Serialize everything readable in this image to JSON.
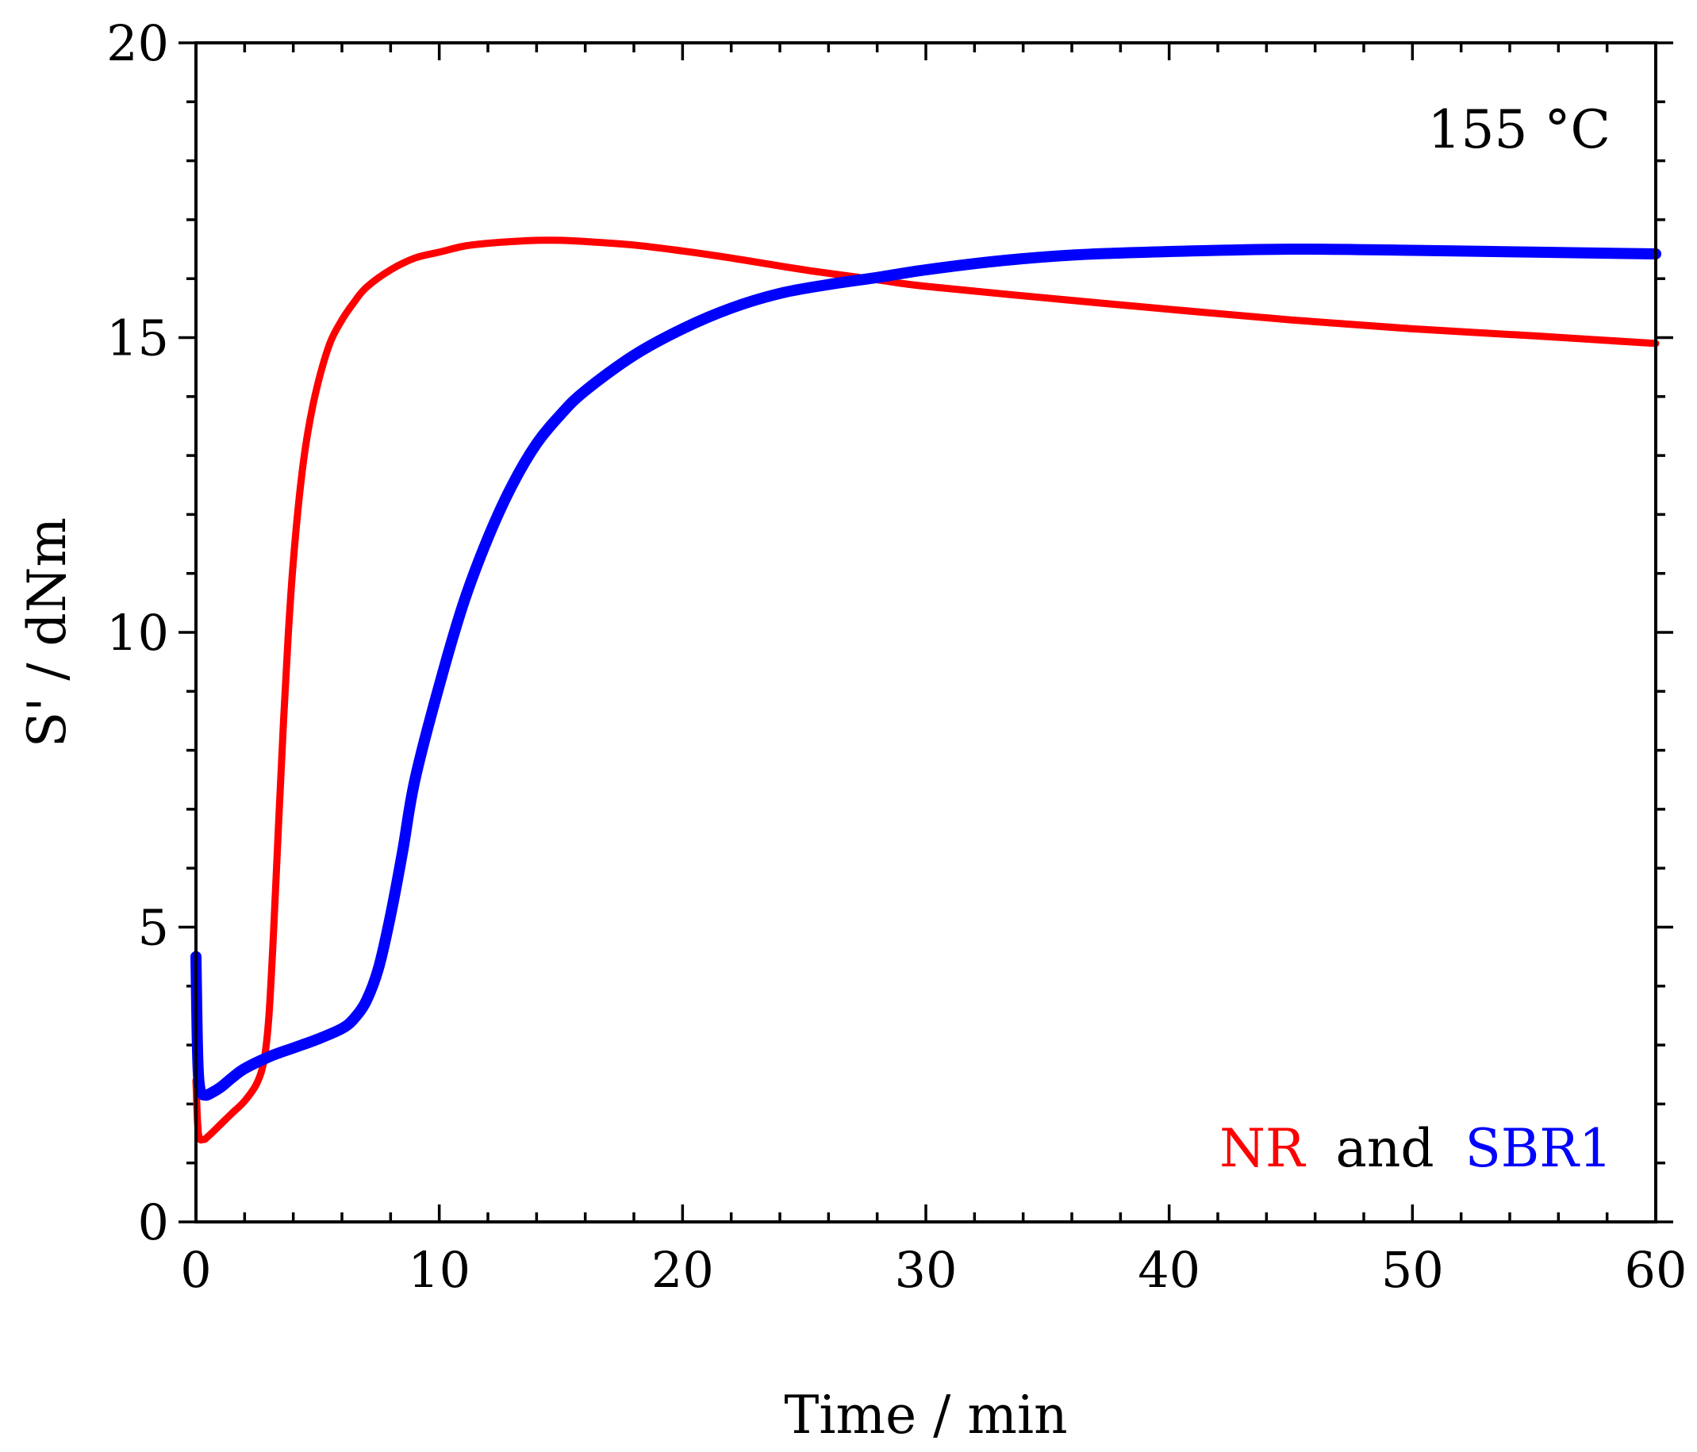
{
  "chart_data": {
    "type": "line",
    "title": "",
    "xlabel": "Time / min",
    "ylabel": "S' / dNm",
    "xlim": [
      0,
      60
    ],
    "ylim": [
      0,
      20
    ],
    "xticks": [
      0,
      10,
      20,
      30,
      40,
      50,
      60
    ],
    "yticks": [
      0,
      5,
      10,
      15,
      20
    ],
    "x_minor_step": 2,
    "y_minor_step": 1,
    "grid": false,
    "annotations": {
      "temperature": "155 °C",
      "legend_nr": "NR",
      "legend_and": "and",
      "legend_sbr": "SBR1"
    },
    "series": [
      {
        "name": "NR",
        "color": "#ff0000",
        "x": [
          0,
          0.1,
          0.3,
          0.5,
          1,
          1.5,
          2,
          2.5,
          2.8,
          3,
          3.2,
          3.4,
          3.6,
          3.8,
          4,
          4.3,
          4.6,
          5,
          5.5,
          6,
          6.5,
          7,
          8,
          9,
          10,
          11,
          12,
          13,
          14,
          15,
          16,
          18,
          20,
          22,
          25,
          28,
          30,
          35,
          40,
          45,
          50,
          55,
          60
        ],
        "y": [
          2.4,
          1.5,
          1.4,
          1.45,
          1.65,
          1.85,
          2.05,
          2.35,
          2.75,
          3.5,
          5.0,
          6.8,
          8.5,
          10.0,
          11.2,
          12.5,
          13.4,
          14.2,
          14.9,
          15.3,
          15.6,
          15.85,
          16.15,
          16.35,
          16.45,
          16.55,
          16.6,
          16.63,
          16.65,
          16.65,
          16.63,
          16.57,
          16.47,
          16.35,
          16.15,
          15.98,
          15.87,
          15.67,
          15.48,
          15.3,
          15.15,
          15.03,
          14.9
        ]
      },
      {
        "name": "SBR1",
        "color": "#0000ff",
        "x": [
          0,
          0.05,
          0.1,
          0.2,
          0.4,
          0.6,
          1,
          1.5,
          2,
          3,
          4,
          5,
          6,
          6.5,
          7,
          7.5,
          8,
          8.5,
          9,
          10,
          11,
          12,
          13,
          14,
          15,
          16,
          18,
          20,
          22,
          24,
          26,
          28,
          30,
          33,
          36,
          40,
          45,
          50,
          55,
          60
        ],
        "y": [
          4.5,
          3.2,
          2.5,
          2.2,
          2.15,
          2.18,
          2.28,
          2.45,
          2.6,
          2.8,
          2.95,
          3.1,
          3.28,
          3.45,
          3.75,
          4.3,
          5.2,
          6.3,
          7.5,
          9.1,
          10.5,
          11.6,
          12.5,
          13.2,
          13.7,
          14.1,
          14.7,
          15.15,
          15.5,
          15.75,
          15.9,
          16.02,
          16.15,
          16.3,
          16.4,
          16.46,
          16.5,
          16.48,
          16.45,
          16.42
        ]
      }
    ]
  }
}
